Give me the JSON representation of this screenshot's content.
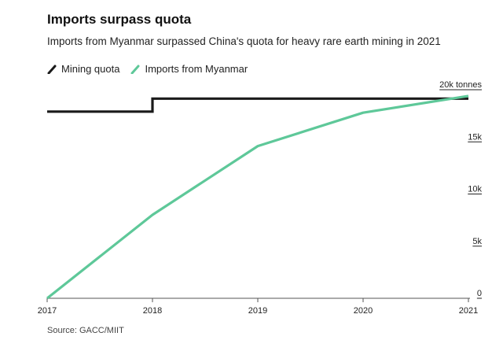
{
  "header": {
    "title": "Imports surpass quota",
    "subtitle": "Imports from Myanmar surpassed China's quota for heavy rare earth mining in 2021"
  },
  "source": "Source: GACC/MIIT",
  "colors": {
    "quota": "#1a1a1a",
    "imports": "#5ec899",
    "axis": "#555555",
    "tick_underline": "#222222"
  },
  "chart_data": {
    "type": "line",
    "title": "Imports surpass quota",
    "xlabel": "",
    "ylabel": "",
    "x_ticks": [
      "2017",
      "2018",
      "2019",
      "2020",
      "2021"
    ],
    "y_ticks": [
      {
        "value": 0,
        "label": "0"
      },
      {
        "value": 5000,
        "label": "5k"
      },
      {
        "value": 10000,
        "label": "10k"
      },
      {
        "value": 15000,
        "label": "15k"
      },
      {
        "value": 20000,
        "label": "20k tonnes"
      }
    ],
    "xlim": [
      2017,
      2021
    ],
    "ylim": [
      0,
      20000
    ],
    "grid": false,
    "legend_position": "top-left",
    "series": [
      {
        "name": "Mining quota",
        "color": "#1a1a1a",
        "step": true,
        "points": [
          {
            "x": 2017,
            "y": 17900
          },
          {
            "x": 2018,
            "y": 17900
          },
          {
            "x": 2018,
            "y": 19150
          },
          {
            "x": 2021,
            "y": 19150
          }
        ]
      },
      {
        "name": "Imports from Myanmar",
        "color": "#5ec899",
        "step": false,
        "points": [
          {
            "x": 2017,
            "y": 0
          },
          {
            "x": 2018,
            "y": 8000
          },
          {
            "x": 2019,
            "y": 14600
          },
          {
            "x": 2020,
            "y": 17800
          },
          {
            "x": 2021,
            "y": 19400
          }
        ]
      }
    ]
  }
}
